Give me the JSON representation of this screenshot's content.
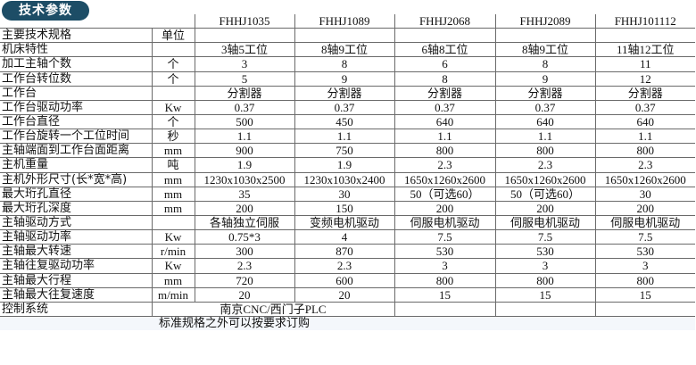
{
  "title": "技术参数",
  "models": [
    "FHHJ1035",
    "FHHJ1089",
    "FHHJ2068",
    "FHHJ2089",
    "FHHJ101112"
  ],
  "rows": [
    {
      "label": "主要技术规格",
      "unit": "单位",
      "values": [
        "",
        "",
        "",
        "",
        ""
      ]
    },
    {
      "label": "机床特性",
      "unit": "",
      "values": [
        "3轴5工位",
        "8轴9工位",
        "6轴8工位",
        "8轴9工位",
        "11轴12工位"
      ]
    },
    {
      "label": "加工主轴个数",
      "unit": "个",
      "values": [
        "3",
        "8",
        "6",
        "8",
        "11"
      ]
    },
    {
      "label": "工作台转位数",
      "unit": "个",
      "values": [
        "5",
        "9",
        "8",
        "9",
        "12"
      ]
    },
    {
      "label": "工作台",
      "unit": "",
      "values": [
        "分割器",
        "分割器",
        "分割器",
        "分割器",
        "分割器"
      ]
    },
    {
      "label": "工作台驱动功率",
      "unit": "Kw",
      "values": [
        "0.37",
        "0.37",
        "0.37",
        "0.37",
        "0.37"
      ]
    },
    {
      "label": "工作台直径",
      "unit": "个",
      "values": [
        "500",
        "450",
        "640",
        "640",
        "640"
      ]
    },
    {
      "label": "工作台旋转一个工位时间",
      "unit": "秒",
      "values": [
        "1.1",
        "1.1",
        "1.1",
        "1.1",
        "1.1"
      ]
    },
    {
      "label": "主轴端面到工作台面距离",
      "unit": "mm",
      "values": [
        "900",
        "750",
        "800",
        "800",
        "800"
      ]
    },
    {
      "label": "主机重量",
      "unit": "吨",
      "values": [
        "1.9",
        "1.9",
        "2.3",
        "2.3",
        "2.3"
      ]
    },
    {
      "label": "主机外形尺寸(长*宽*高)",
      "unit": "mm",
      "values": [
        "1230x1030x2500",
        "1230x1030x2400",
        "1650x1260x2600",
        "1650x1260x2600",
        "1650x1260x2600"
      ]
    },
    {
      "label": "最大珩孔直径",
      "unit": "mm",
      "values": [
        "35",
        "30",
        "50（可选60）",
        "50（可选60）",
        "30"
      ]
    },
    {
      "label": "最大珩孔深度",
      "unit": "mm",
      "values": [
        "200",
        "150",
        "200",
        "200",
        "200"
      ]
    },
    {
      "label": "主轴驱动方式",
      "unit": "",
      "values": [
        "各轴独立伺服",
        "变频电机驱动",
        "伺服电机驱动",
        "伺服电机驱动",
        "伺服电机驱动"
      ]
    },
    {
      "label": "主轴驱动功率",
      "unit": "Kw",
      "values": [
        "0.75*3",
        "4",
        "7.5",
        "7.5",
        "7.5"
      ]
    },
    {
      "label": "主轴最大转速",
      "unit": "r/min",
      "values": [
        "300",
        "870",
        "530",
        "530",
        "530"
      ]
    },
    {
      "label": "主轴往复驱动功率",
      "unit": "Kw",
      "values": [
        "2.3",
        "2.3",
        "3",
        "3",
        "3"
      ]
    },
    {
      "label": "主轴最大行程",
      "unit": "mm",
      "values": [
        "720",
        "600",
        "800",
        "800",
        "800"
      ]
    },
    {
      "label": "主轴最大往复速度",
      "unit": "m/min",
      "values": [
        "20",
        "20",
        "15",
        "15",
        "15"
      ]
    }
  ],
  "control": {
    "label": "控制系统",
    "value": "南京CNC/西门子PLC"
  },
  "note": "标准规格之外可以按要求订购"
}
